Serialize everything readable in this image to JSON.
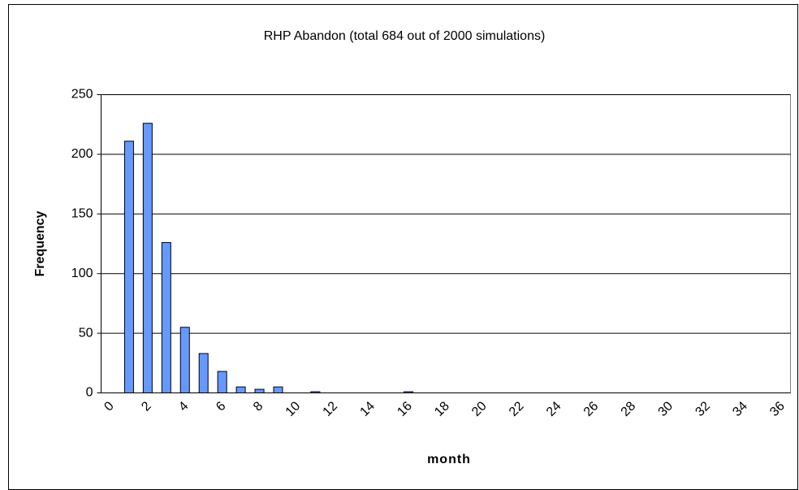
{
  "chart_data": {
    "type": "bar",
    "title": "RHP Abandon (total 684 out of 2000 simulations)",
    "x_label": "month",
    "y_label": "Frequency",
    "categories": [
      "0",
      null,
      "2",
      null,
      "4",
      null,
      "6",
      null,
      "8",
      null,
      "10",
      null,
      "12",
      null,
      "14",
      null,
      "16",
      null,
      "18",
      null,
      "20",
      null,
      "22",
      null,
      "24",
      null,
      "26",
      null,
      "28",
      null,
      "30",
      null,
      "32",
      null,
      "34",
      null,
      "36"
    ],
    "values": [
      0,
      211,
      226,
      126,
      55,
      33,
      18,
      5,
      3,
      5,
      0,
      1,
      0,
      0,
      0,
      0,
      1,
      0,
      0,
      0,
      0,
      0,
      0,
      0,
      0,
      0,
      0,
      0,
      0,
      0,
      0,
      0,
      0,
      0,
      0,
      0,
      0
    ],
    "color": "#6699ff",
    "ylim": [
      0,
      250
    ],
    "yticks": [
      0,
      50,
      100,
      150,
      200,
      250
    ],
    "grid": true
  }
}
